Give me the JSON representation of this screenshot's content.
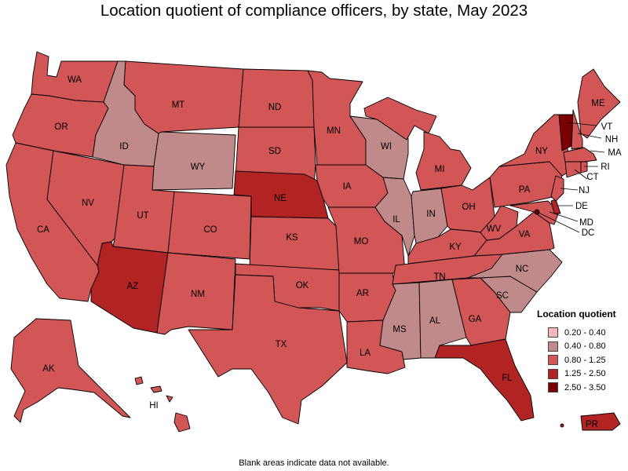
{
  "title": "Location quotient of compliance officers, by state, May 2023",
  "footnote": "Blank areas indicate data not available.",
  "legend": {
    "title": "Location quotient",
    "items": [
      {
        "label": "0.20 - 0.40",
        "color": "#f5b8b8"
      },
      {
        "label": "0.40 - 0.80",
        "color": "#c08a8a"
      },
      {
        "label": "0.80 - 1.25",
        "color": "#d25656"
      },
      {
        "label": "1.25 - 2.50",
        "color": "#b22323"
      },
      {
        "label": "2.50 - 3.50",
        "color": "#7a0000"
      }
    ]
  },
  "states": {
    "WA": "0.80 - 1.25",
    "OR": "0.80 - 1.25",
    "CA": "0.80 - 1.25",
    "NV": "0.80 - 1.25",
    "ID": "0.40 - 0.80",
    "MT": "0.80 - 1.25",
    "WY": "0.40 - 0.80",
    "UT": "0.80 - 1.25",
    "AZ": "1.25 - 2.50",
    "CO": "0.80 - 1.25",
    "NM": "0.80 - 1.25",
    "ND": "0.80 - 1.25",
    "SD": "0.80 - 1.25",
    "NE": "1.25 - 2.50",
    "KS": "0.80 - 1.25",
    "OK": "0.80 - 1.25",
    "TX": "0.80 - 1.25",
    "MN": "0.80 - 1.25",
    "IA": "0.80 - 1.25",
    "MO": "0.80 - 1.25",
    "AR": "0.80 - 1.25",
    "LA": "0.80 - 1.25",
    "WI": "0.40 - 0.80",
    "IL": "0.40 - 0.80",
    "MI": "0.80 - 1.25",
    "IN": "0.40 - 0.80",
    "OH": "0.80 - 1.25",
    "KY": "0.80 - 1.25",
    "TN": "0.80 - 1.25",
    "MS": "0.40 - 0.80",
    "AL": "0.40 - 0.80",
    "GA": "0.80 - 1.25",
    "FL": "1.25 - 2.50",
    "SC": "0.40 - 0.80",
    "NC": "0.40 - 0.80",
    "VA": "0.80 - 1.25",
    "WV": "0.80 - 1.25",
    "PA": "0.80 - 1.25",
    "NY": "0.80 - 1.25",
    "VT": "2.50 - 3.50",
    "NH": "0.80 - 1.25",
    "ME": "0.80 - 1.25",
    "MA": "0.80 - 1.25",
    "RI": "0.80 - 1.25",
    "CT": "0.80 - 1.25",
    "NJ": "0.80 - 1.25",
    "DE": "1.25 - 2.50",
    "MD": "0.80 - 1.25",
    "DC": "2.50 - 3.50",
    "AK": "0.80 - 1.25",
    "HI": "0.80 - 1.25",
    "PR": "1.25 - 2.50"
  }
}
